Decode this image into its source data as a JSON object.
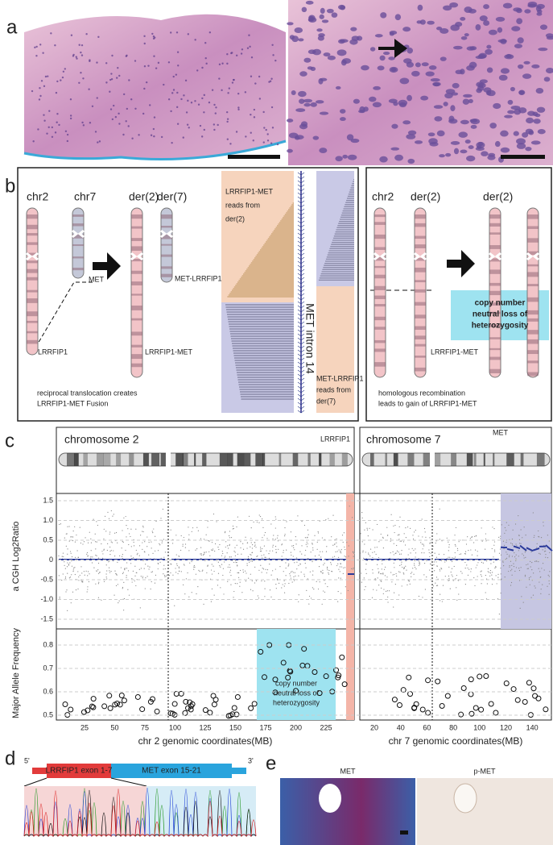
{
  "panels": {
    "a": {
      "label": "a"
    },
    "b": {
      "label": "b",
      "left": {
        "chromosomes": [
          "chr2",
          "chr7",
          "der(2)",
          "der(7)"
        ],
        "genes": [
          "MET",
          "MET-LRRFIP1",
          "LRRFIP1",
          "LRRFIP1-MET"
        ],
        "reads_top": [
          "LRRFIP1-MET",
          "reads from",
          "der(2)"
        ],
        "reads_bottom": [
          "MET-LRRFIP1",
          "reads from",
          "der(7)"
        ],
        "intron": "MET intron 14",
        "caption": [
          "reciprocal translocation creates",
          "LRRFIP1-MET Fusion"
        ]
      },
      "right": {
        "chromosomes": [
          "chr2",
          "der(2)",
          "der(2)"
        ],
        "gene": "LRRFIP1-MET",
        "annotation": [
          "copy number",
          "neutral loss of",
          "heterozygosity"
        ],
        "caption": [
          "homologous recombination",
          "leads to gain of LRRFIP1-MET"
        ]
      }
    },
    "c": {
      "label": "c",
      "chr2": {
        "title": "chromosome 2",
        "gene": "LRRFIP1",
        "xticks": [
          "25",
          "50",
          "75",
          "100",
          "125",
          "150",
          "175",
          "200",
          "225"
        ],
        "xlabel": "chr 2 genomic coordinates(MB)",
        "annotation": [
          "copy number",
          "neutral loss of",
          "heterozygosity"
        ]
      },
      "chr7": {
        "title": "chromosome 7",
        "gene": "MET",
        "xticks": [
          "20",
          "40",
          "60",
          "80",
          "100",
          "120",
          "140"
        ],
        "xlabel": "chr 7 genomic coordinates(MB)"
      },
      "cgh": {
        "ylabel": "a CGH  Log2Ratio",
        "yticks": [
          "1.5",
          "1.0",
          "0.5",
          "0",
          "-0.5",
          "-1.0",
          "-1.5"
        ]
      },
      "maf": {
        "ylabel": "Major Allele Frequency",
        "yticks": [
          "0.8",
          "0.7",
          "0.6",
          "0.5"
        ]
      }
    },
    "d": {
      "label": "d",
      "five": "5'",
      "exon_a": "LRRFIP1 exon 1-7",
      "exon_b": "MET exon 15-21",
      "three": "3'"
    },
    "e": {
      "label": "e",
      "stains": [
        "MET",
        "p-MET"
      ]
    }
  }
}
